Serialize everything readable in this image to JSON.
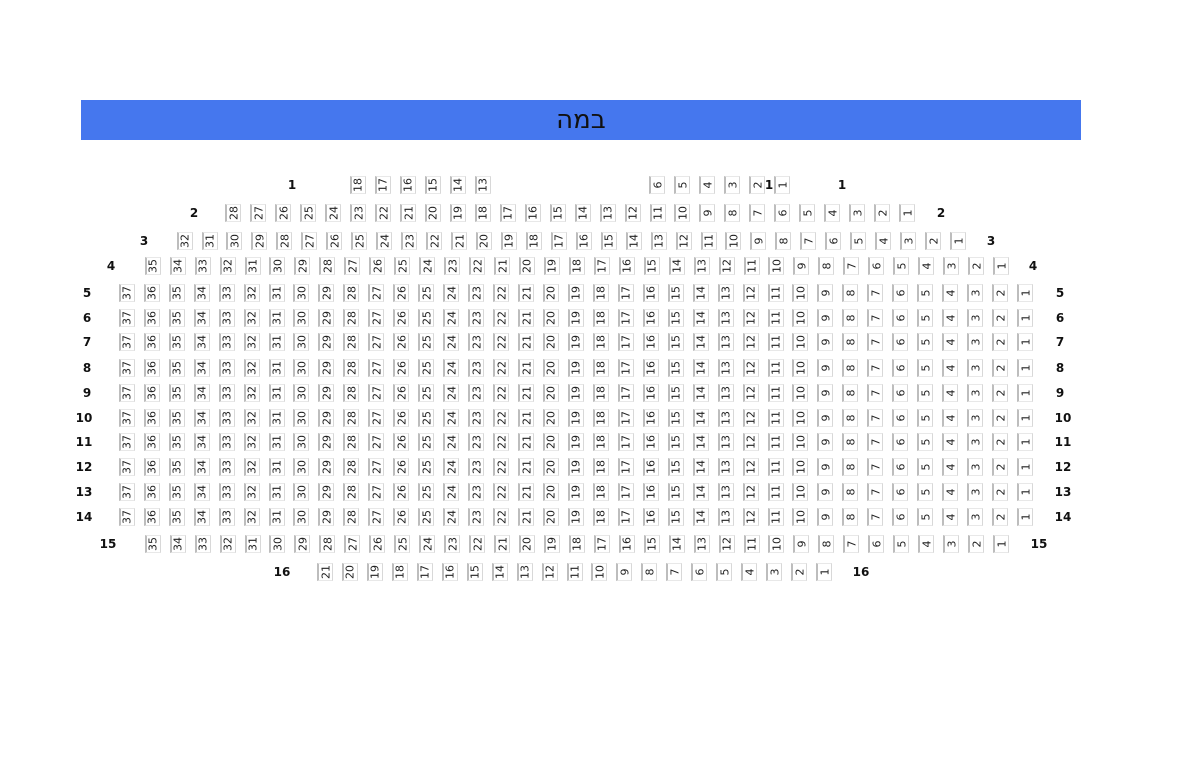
{
  "stage": {
    "label": "במה",
    "color": "#4577ee"
  },
  "rows": [
    {
      "label": "1",
      "extra_label": "1",
      "seats": [
        18,
        17,
        16,
        15,
        14,
        13,
        6,
        5,
        4,
        3,
        2,
        1
      ]
    },
    {
      "label": "2",
      "seats": [
        28,
        27,
        26,
        25,
        24,
        23,
        22,
        21,
        20,
        19,
        18,
        17,
        16,
        15,
        14,
        13,
        12,
        11,
        10,
        9,
        8,
        7,
        6,
        5,
        4,
        3,
        2,
        1
      ]
    },
    {
      "label": "3",
      "seats": [
        32,
        31,
        30,
        29,
        28,
        27,
        26,
        25,
        24,
        23,
        22,
        21,
        20,
        19,
        18,
        17,
        16,
        15,
        14,
        13,
        12,
        11,
        10,
        9,
        8,
        7,
        6,
        5,
        4,
        3,
        2,
        1
      ]
    },
    {
      "label": "4",
      "seats": [
        35,
        34,
        33,
        32,
        31,
        30,
        29,
        28,
        27,
        26,
        25,
        24,
        23,
        22,
        21,
        20,
        19,
        18,
        17,
        16,
        15,
        14,
        13,
        12,
        11,
        10,
        9,
        8,
        7,
        6,
        5,
        4,
        3,
        2,
        1
      ]
    },
    {
      "label": "5",
      "seats": [
        37,
        36,
        35,
        34,
        33,
        32,
        31,
        30,
        29,
        28,
        27,
        26,
        25,
        24,
        23,
        22,
        21,
        20,
        19,
        18,
        17,
        16,
        15,
        14,
        13,
        12,
        11,
        10,
        9,
        8,
        7,
        6,
        5,
        4,
        3,
        2,
        1
      ]
    },
    {
      "label": "6",
      "seats": [
        37,
        36,
        35,
        34,
        33,
        32,
        31,
        30,
        29,
        28,
        27,
        26,
        25,
        24,
        23,
        22,
        21,
        20,
        19,
        18,
        17,
        16,
        15,
        14,
        13,
        12,
        11,
        10,
        9,
        8,
        7,
        6,
        5,
        4,
        3,
        2,
        1
      ]
    },
    {
      "label": "7",
      "seats": [
        37,
        36,
        35,
        34,
        33,
        32,
        31,
        30,
        29,
        28,
        27,
        26,
        25,
        24,
        23,
        22,
        21,
        20,
        19,
        18,
        17,
        16,
        15,
        14,
        13,
        12,
        11,
        10,
        9,
        8,
        7,
        6,
        5,
        4,
        3,
        2,
        1
      ]
    },
    {
      "label": "8",
      "seats": [
        37,
        36,
        35,
        34,
        33,
        32,
        31,
        30,
        29,
        28,
        27,
        26,
        25,
        24,
        23,
        22,
        21,
        20,
        19,
        18,
        17,
        16,
        15,
        14,
        13,
        12,
        11,
        10,
        9,
        8,
        7,
        6,
        5,
        4,
        3,
        2,
        1
      ]
    },
    {
      "label": "9",
      "seats": [
        37,
        36,
        35,
        34,
        33,
        32,
        31,
        30,
        29,
        28,
        27,
        26,
        25,
        24,
        23,
        22,
        21,
        20,
        19,
        18,
        17,
        16,
        15,
        14,
        13,
        12,
        11,
        10,
        9,
        8,
        7,
        6,
        5,
        4,
        3,
        2,
        1
      ]
    },
    {
      "label": "10",
      "seats": [
        37,
        36,
        35,
        34,
        33,
        32,
        31,
        30,
        29,
        28,
        27,
        26,
        25,
        24,
        23,
        22,
        21,
        20,
        19,
        18,
        17,
        16,
        15,
        14,
        13,
        12,
        11,
        10,
        9,
        8,
        7,
        6,
        5,
        4,
        3,
        2,
        1
      ]
    },
    {
      "label": "11",
      "seats": [
        37,
        36,
        35,
        34,
        33,
        32,
        31,
        30,
        29,
        28,
        27,
        26,
        25,
        24,
        23,
        22,
        21,
        20,
        19,
        18,
        17,
        16,
        15,
        14,
        13,
        12,
        11,
        10,
        9,
        8,
        7,
        6,
        5,
        4,
        3,
        2,
        1
      ]
    },
    {
      "label": "12",
      "seats": [
        37,
        36,
        35,
        34,
        33,
        32,
        31,
        30,
        29,
        28,
        27,
        26,
        25,
        24,
        23,
        22,
        21,
        20,
        19,
        18,
        17,
        16,
        15,
        14,
        13,
        12,
        11,
        10,
        9,
        8,
        7,
        6,
        5,
        4,
        3,
        2,
        1
      ]
    },
    {
      "label": "13",
      "seats": [
        37,
        36,
        35,
        34,
        33,
        32,
        31,
        30,
        29,
        28,
        27,
        26,
        25,
        24,
        23,
        22,
        21,
        20,
        19,
        18,
        17,
        16,
        15,
        14,
        13,
        12,
        11,
        10,
        9,
        8,
        7,
        6,
        5,
        4,
        3,
        2,
        1
      ]
    },
    {
      "label": "14",
      "seats": [
        37,
        36,
        35,
        34,
        33,
        32,
        31,
        30,
        29,
        28,
        27,
        26,
        25,
        24,
        23,
        22,
        21,
        20,
        19,
        18,
        17,
        16,
        15,
        14,
        13,
        12,
        11,
        10,
        9,
        8,
        7,
        6,
        5,
        4,
        3,
        2,
        1
      ]
    },
    {
      "label": "15",
      "seats": [
        35,
        34,
        33,
        32,
        31,
        30,
        29,
        28,
        27,
        26,
        25,
        24,
        23,
        22,
        21,
        20,
        19,
        18,
        17,
        16,
        15,
        14,
        13,
        12,
        11,
        10,
        9,
        8,
        7,
        6,
        5,
        4,
        3,
        2,
        1
      ]
    },
    {
      "label": "16",
      "seats": [
        21,
        20,
        19,
        18,
        17,
        16,
        15,
        14,
        13,
        12,
        11,
        10,
        9,
        8,
        7,
        6,
        5,
        4,
        3,
        2,
        1
      ]
    }
  ]
}
